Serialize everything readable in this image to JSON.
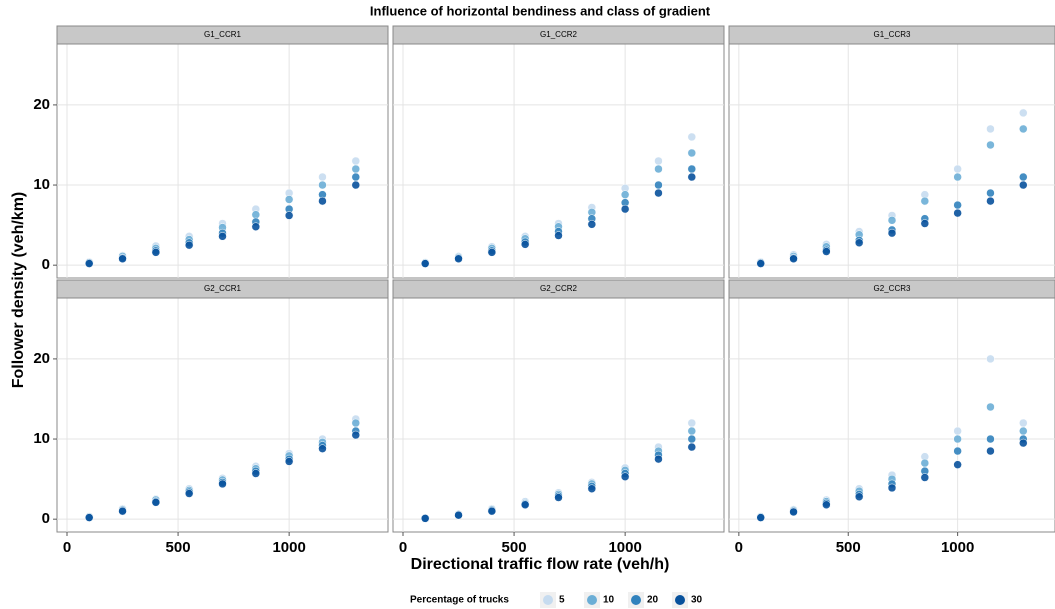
{
  "chart_data": {
    "type": "scatter",
    "title": "Influence of horizontal bendiness and class of gradient",
    "x_label": "Directional traffic flow rate (veh/h)",
    "y_label": "Follower density (veh/km)",
    "legend_title": "Percentage of trucks",
    "legend_position": "bottom",
    "grid": true,
    "xlim": [
      -45,
      1445
    ],
    "ylim": [
      -1.6,
      27.6
    ],
    "xticks": [
      0,
      500,
      1000
    ],
    "yticks": [
      0,
      10,
      20
    ],
    "series": [
      {
        "name": "5",
        "color": "#c6dbef"
      },
      {
        "name": "10",
        "color": "#6baed6"
      },
      {
        "name": "20",
        "color": "#3182bd"
      },
      {
        "name": "30",
        "color": "#08519c"
      }
    ],
    "panels": [
      {
        "title": "G1_CCR1",
        "x": [
          100,
          250,
          400,
          550,
          700,
          850,
          1000,
          1150,
          1300
        ],
        "values": [
          [
            0.4,
            1.2,
            2.4,
            3.6,
            5.2,
            7,
            9,
            11,
            13
          ],
          [
            0.3,
            1.1,
            2.1,
            3.2,
            4.7,
            6.3,
            8.2,
            10,
            12
          ],
          [
            0.3,
            0.9,
            1.8,
            2.8,
            4,
            5.4,
            7,
            8.8,
            11
          ],
          [
            0.2,
            0.8,
            1.6,
            2.5,
            3.6,
            4.8,
            6.2,
            8,
            10
          ]
        ]
      },
      {
        "title": "G1_CCR2",
        "x": [
          100,
          250,
          400,
          550,
          700,
          850,
          1000,
          1150,
          1300
        ],
        "values": [
          [
            0.3,
            1.1,
            2.3,
            3.6,
            5.2,
            7.2,
            9.6,
            13,
            16
          ],
          [
            0.3,
            1,
            2.1,
            3.3,
            4.8,
            6.6,
            8.8,
            12,
            14
          ],
          [
            0.2,
            0.9,
            1.8,
            2.9,
            4.2,
            5.8,
            7.8,
            10,
            12
          ],
          [
            0.2,
            0.8,
            1.6,
            2.6,
            3.7,
            5.1,
            7,
            9,
            11
          ]
        ]
      },
      {
        "title": "G1_CCR3",
        "x": [
          100,
          250,
          400,
          550,
          700,
          850,
          1000,
          1150,
          1300
        ],
        "values": [
          [
            0.4,
            1.3,
            2.6,
            4.2,
            6.2,
            8.8,
            12,
            17,
            19
          ],
          [
            0.3,
            1.1,
            2.3,
            3.8,
            5.6,
            8,
            11,
            15,
            17
          ],
          [
            0.3,
            0.9,
            1.9,
            3.1,
            4.4,
            5.8,
            7.5,
            9,
            11
          ],
          [
            0.2,
            0.8,
            1.7,
            2.8,
            4,
            5.2,
            6.5,
            8,
            10
          ]
        ]
      },
      {
        "title": "G2_CCR1",
        "x": [
          100,
          250,
          400,
          550,
          700,
          850,
          1000,
          1150,
          1300
        ],
        "values": [
          [
            0.3,
            1.3,
            2.5,
            3.8,
            5.1,
            6.6,
            8.2,
            10,
            12.5
          ],
          [
            0.3,
            1.2,
            2.4,
            3.6,
            4.9,
            6.3,
            7.9,
            9.6,
            12
          ],
          [
            0.2,
            1.1,
            2.2,
            3.4,
            4.6,
            6,
            7.5,
            9.2,
            11
          ],
          [
            0.2,
            1,
            2.1,
            3.2,
            4.4,
            5.7,
            7.2,
            8.8,
            10.5
          ]
        ]
      },
      {
        "title": "G2_CCR2",
        "x": [
          100,
          250,
          400,
          550,
          700,
          850,
          1000,
          1150,
          1300
        ],
        "values": [
          [
            0.1,
            0.6,
            1.3,
            2.2,
            3.3,
            4.6,
            6.4,
            9,
            12
          ],
          [
            0.1,
            0.6,
            1.2,
            2,
            3.1,
            4.4,
            6.1,
            8.5,
            11
          ],
          [
            0.1,
            0.5,
            1.1,
            1.9,
            2.9,
            4.1,
            5.7,
            8,
            10
          ],
          [
            0.1,
            0.5,
            1,
            1.8,
            2.7,
            3.8,
            5.3,
            7.5,
            9
          ]
        ]
      },
      {
        "title": "G2_CCR3",
        "x": [
          100,
          250,
          400,
          550,
          700,
          850,
          1000,
          1150,
          1300
        ],
        "values": [
          [
            0.3,
            1.2,
            2.4,
            3.8,
            5.5,
            7.8,
            11,
            20,
            12
          ],
          [
            0.3,
            1.1,
            2.2,
            3.5,
            5,
            7,
            10,
            14,
            11
          ],
          [
            0.2,
            1,
            2,
            3.1,
            4.4,
            6,
            8.5,
            10,
            10
          ],
          [
            0.2,
            0.9,
            1.8,
            2.8,
            3.9,
            5.2,
            6.8,
            8.5,
            9.5
          ]
        ]
      }
    ]
  }
}
